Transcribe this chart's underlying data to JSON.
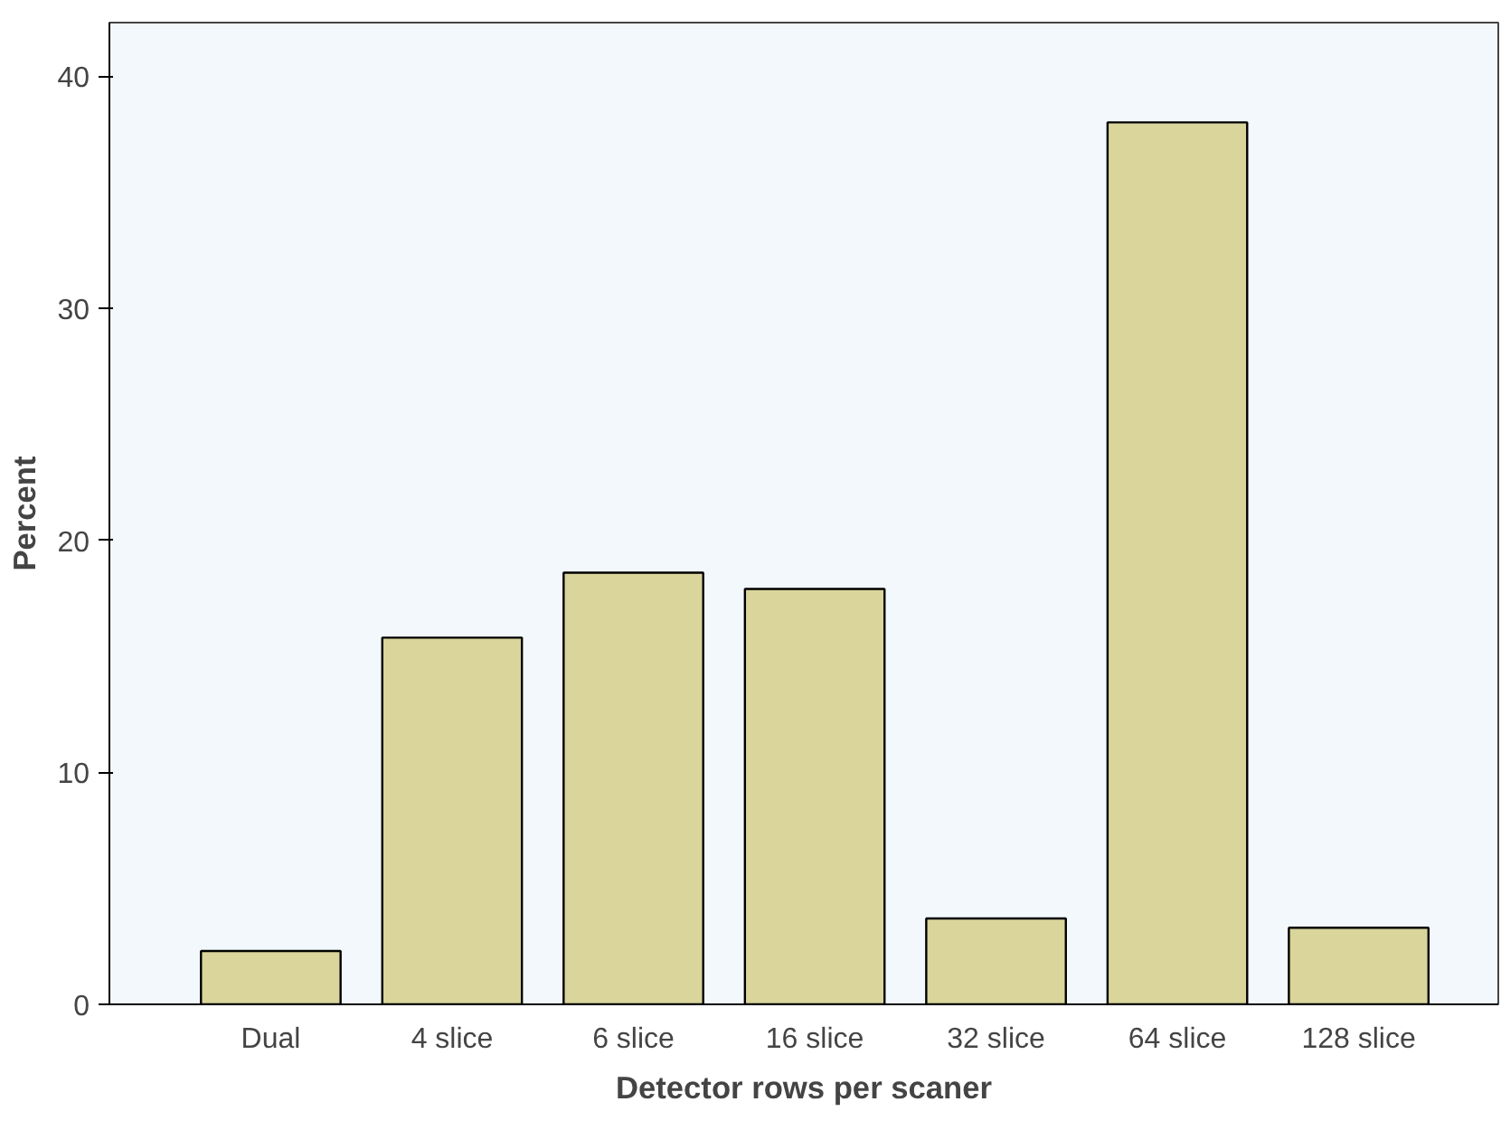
{
  "chart_data": {
    "type": "bar",
    "xlabel": "Detector rows per scaner",
    "ylabel": "Percent",
    "categories": [
      "Dual",
      "4 slice",
      "6 slice",
      "16 slice",
      "32 slice",
      "64 slice",
      "128 slice"
    ],
    "values": [
      2.3,
      15.8,
      18.6,
      17.9,
      3.7,
      38.0,
      3.3
    ],
    "color": "#d9d59b",
    "ylim": [
      0,
      42.3
    ],
    "yticks": [
      0,
      10,
      20,
      30,
      40
    ],
    "grid": false
  }
}
